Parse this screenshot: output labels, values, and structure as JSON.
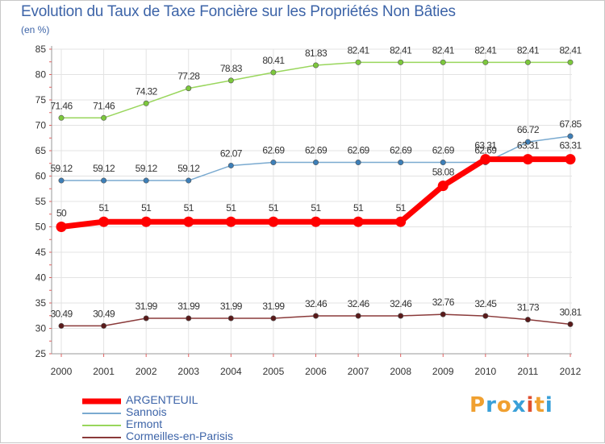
{
  "title": "Evolution du Taux de Taxe Foncière sur les Propriétés Non Bâties",
  "subtitle": "(en %)",
  "logo": {
    "text": "Proxiti",
    "letters": [
      "P",
      "r",
      "o",
      "x",
      "i",
      "t",
      "i"
    ],
    "colors": [
      "#f0a030",
      "#3aa0d8",
      "#f0a030",
      "#3aa0d8",
      "#e05030",
      "#f0a030",
      "#3aa0d8"
    ]
  },
  "chart_data": {
    "type": "line",
    "title": "Evolution du Taux de Taxe Foncière sur les Propriétés Non Bâties",
    "ylabel": "(en %)",
    "xlabel": "",
    "categories": [
      "2000",
      "2001",
      "2002",
      "2003",
      "2004",
      "2005",
      "2006",
      "2007",
      "2008",
      "2009",
      "2010",
      "2011",
      "2012"
    ],
    "ylim": [
      25,
      85
    ],
    "yticks": [
      25,
      30,
      35,
      40,
      45,
      50,
      55,
      60,
      65,
      70,
      75,
      80,
      85
    ],
    "grid": true,
    "series": [
      {
        "name": "Ermont",
        "color": "#99d65c",
        "marker": "#7cc83c",
        "emphasis": false,
        "values": [
          71.46,
          71.46,
          74.32,
          77.28,
          78.83,
          80.41,
          81.83,
          82.41,
          82.41,
          82.41,
          82.41,
          82.41,
          82.41
        ],
        "labels": [
          "71.46",
          "71.46",
          "74.32",
          "77.28",
          "78.83",
          "80.41",
          "81.83",
          "82.41",
          "82.41",
          "82.41",
          "82.41",
          "82.41",
          "82.41"
        ]
      },
      {
        "name": "Sannois",
        "color": "#7aaad0",
        "marker": "#3d7fb8",
        "emphasis": false,
        "values": [
          59.12,
          59.12,
          59.12,
          59.12,
          62.07,
          62.69,
          62.69,
          62.69,
          62.69,
          62.69,
          62.69,
          66.72,
          67.85
        ],
        "labels": [
          "59.12",
          "59.12",
          "59.12",
          "59.12",
          "62.07",
          "62.69",
          "62.69",
          "62.69",
          "62.69",
          "62.69",
          "62.69",
          "66.72",
          "67.85"
        ]
      },
      {
        "name": "Cormeilles-en-Parisis",
        "color": "#8a3a3a",
        "marker": "#5a1a1a",
        "emphasis": false,
        "values": [
          30.49,
          30.49,
          31.99,
          31.99,
          31.99,
          31.99,
          32.46,
          32.46,
          32.46,
          32.76,
          32.45,
          31.73,
          30.81
        ],
        "labels": [
          "30.49",
          "30.49",
          "31.99",
          "31.99",
          "31.99",
          "31.99",
          "32.46",
          "32.46",
          "32.46",
          "32.76",
          "32.45",
          "31.73",
          "30.81"
        ]
      },
      {
        "name": "ARGENTEUIL",
        "color": "#ff0000",
        "marker": "#ff0000",
        "emphasis": true,
        "values": [
          50,
          51,
          51,
          51,
          51,
          51,
          51,
          51,
          51,
          58.08,
          63.31,
          63.31,
          63.31
        ],
        "labels": [
          "50",
          "51",
          "51",
          "51",
          "51",
          "51",
          "51",
          "51",
          "51",
          "58.08",
          "63.31",
          "63.31",
          "63.31"
        ]
      }
    ],
    "legend": [
      "ARGENTEUIL",
      "Sannois",
      "Ermont",
      "Cormeilles-en-Parisis"
    ],
    "legend_placement": "bottom-left"
  }
}
